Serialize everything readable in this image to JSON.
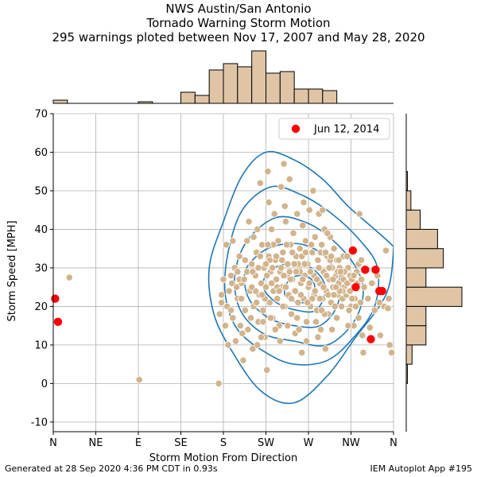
{
  "title": {
    "line1": "NWS Austin/San Antonio",
    "line2": "Tornado Warning Storm Motion",
    "line3": "295 warnings ploted between Nov 17, 2007 and May 28, 2020"
  },
  "footer": {
    "left": "Generated at 28 Sep 2020 4:36 PM CDT in 0.93s",
    "right": "IEM Autoplot App #195"
  },
  "colors": {
    "scatter": "#d2b48c",
    "highlight": "#ff0000",
    "contour": "#1f77b4",
    "hist_fill": "#dfc5a6",
    "grid": "#b0b0b0"
  },
  "chart_data": {
    "type": "scatter",
    "xlabel": "Storm Motion From Direction",
    "ylabel": "Storm Speed [MPH]",
    "xlim": [
      0,
      360
    ],
    "ylim": [
      -12.5,
      70
    ],
    "grid": true,
    "legend": {
      "position": "top-right",
      "label": "Jun 12, 2014"
    },
    "x_ticks": [
      {
        "value": 0,
        "label": "N"
      },
      {
        "value": 45,
        "label": "NE"
      },
      {
        "value": 90,
        "label": "E"
      },
      {
        "value": 135,
        "label": "SE"
      },
      {
        "value": 180,
        "label": "S"
      },
      {
        "value": 225,
        "label": "SW"
      },
      {
        "value": 270,
        "label": "W"
      },
      {
        "value": 315,
        "label": "NW"
      },
      {
        "value": 360,
        "label": "N"
      }
    ],
    "y_ticks": [
      -10,
      0,
      10,
      20,
      30,
      40,
      50,
      60,
      70
    ],
    "highlight_points": [
      [
        2,
        22
      ],
      [
        5,
        16
      ],
      [
        317,
        34.5
      ],
      [
        320,
        25
      ],
      [
        330,
        29.5
      ],
      [
        341,
        29.5
      ],
      [
        345,
        24
      ],
      [
        348,
        24
      ],
      [
        336,
        11.5
      ]
    ],
    "points": [
      [
        17,
        27.5
      ],
      [
        91,
        1
      ],
      [
        175,
        0
      ],
      [
        176,
        18
      ],
      [
        178,
        21
      ],
      [
        180,
        27
      ],
      [
        182,
        15
      ],
      [
        184,
        20
      ],
      [
        186,
        24
      ],
      [
        188,
        28
      ],
      [
        190,
        17
      ],
      [
        192,
        30
      ],
      [
        193,
        11
      ],
      [
        195,
        22
      ],
      [
        197,
        33
      ],
      [
        199,
        26
      ],
      [
        201,
        6
      ],
      [
        203,
        19
      ],
      [
        205,
        37
      ],
      [
        206,
        14
      ],
      [
        208,
        24
      ],
      [
        210,
        31
      ],
      [
        211,
        9
      ],
      [
        212,
        20
      ],
      [
        214,
        28
      ],
      [
        215,
        34
      ],
      [
        216,
        40
      ],
      [
        217,
        16
      ],
      [
        218,
        23
      ],
      [
        219,
        52
      ],
      [
        220,
        26
      ],
      [
        221,
        36
      ],
      [
        222,
        19
      ],
      [
        223,
        30
      ],
      [
        224,
        12
      ],
      [
        225,
        25
      ],
      [
        226,
        3.5
      ],
      [
        227,
        55
      ],
      [
        228,
        33
      ],
      [
        229,
        21
      ],
      [
        230,
        29
      ],
      [
        231,
        40
      ],
      [
        232,
        17
      ],
      [
        233,
        24
      ],
      [
        234,
        44
      ],
      [
        235,
        32
      ],
      [
        236,
        27
      ],
      [
        237,
        22
      ],
      [
        238,
        37
      ],
      [
        239,
        15
      ],
      [
        240,
        29
      ],
      [
        241,
        51
      ],
      [
        242,
        25
      ],
      [
        243,
        34
      ],
      [
        244,
        57
      ],
      [
        245,
        20
      ],
      [
        246,
        42
      ],
      [
        247,
        28
      ],
      [
        248,
        31
      ],
      [
        249,
        23
      ],
      [
        250,
        53
      ],
      [
        251,
        36
      ],
      [
        252,
        18
      ],
      [
        253,
        27
      ],
      [
        254,
        39
      ],
      [
        255,
        24
      ],
      [
        256,
        13
      ],
      [
        257,
        33
      ],
      [
        258,
        44
      ],
      [
        259,
        21
      ],
      [
        260,
        30
      ],
      [
        261,
        35
      ],
      [
        262,
        26
      ],
      [
        263,
        8
      ],
      [
        264,
        41
      ],
      [
        265,
        22
      ],
      [
        266,
        28
      ],
      [
        267,
        37
      ],
      [
        268,
        16
      ],
      [
        269,
        31
      ],
      [
        270,
        25
      ],
      [
        271,
        45
      ],
      [
        272,
        20
      ],
      [
        273,
        29
      ],
      [
        274,
        34
      ],
      [
        275,
        50
      ],
      [
        276,
        23
      ],
      [
        277,
        38
      ],
      [
        278,
        27
      ],
      [
        279,
        19
      ],
      [
        280,
        32
      ],
      [
        281,
        44
      ],
      [
        282,
        26
      ],
      [
        283,
        14
      ],
      [
        284,
        36
      ],
      [
        285,
        22
      ],
      [
        286,
        29
      ],
      [
        287,
        40
      ],
      [
        288,
        9
      ],
      [
        289,
        24
      ],
      [
        290,
        33
      ],
      [
        291,
        18
      ],
      [
        292,
        27
      ],
      [
        293,
        38
      ],
      [
        294,
        21
      ],
      [
        295,
        30
      ],
      [
        296,
        25
      ],
      [
        297,
        35
      ],
      [
        298,
        20
      ],
      [
        299,
        28
      ],
      [
        300,
        32
      ],
      [
        301,
        23
      ],
      [
        302,
        26
      ],
      [
        303,
        30
      ],
      [
        304,
        24
      ],
      [
        305,
        28
      ],
      [
        306,
        22
      ],
      [
        307,
        27
      ],
      [
        308,
        25
      ],
      [
        309,
        29
      ],
      [
        310,
        23
      ],
      [
        311,
        26
      ],
      [
        312,
        30
      ],
      [
        313,
        24
      ],
      [
        314,
        28
      ],
      [
        315,
        20
      ],
      [
        316,
        27
      ],
      [
        318,
        15
      ],
      [
        319,
        22
      ],
      [
        321,
        29
      ],
      [
        322,
        26
      ],
      [
        323,
        17
      ],
      [
        324,
        44
      ],
      [
        325,
        21
      ],
      [
        326,
        27
      ],
      [
        327,
        12.5
      ],
      [
        328,
        8
      ],
      [
        329,
        25
      ],
      [
        333,
        22
      ],
      [
        335,
        14.5
      ],
      [
        338,
        26
      ],
      [
        340,
        19
      ],
      [
        343,
        28
      ],
      [
        346,
        12.5
      ],
      [
        350,
        20
      ],
      [
        352,
        34.5
      ],
      [
        354,
        19.5
      ],
      [
        355,
        22
      ],
      [
        356,
        10
      ],
      [
        358,
        8
      ],
      [
        197,
        27
      ],
      [
        203,
        32
      ],
      [
        212,
        38
      ],
      [
        219,
        33
      ],
      [
        224,
        22
      ],
      [
        226,
        28
      ],
      [
        231,
        26
      ],
      [
        236,
        33
      ],
      [
        241,
        30
      ],
      [
        246,
        25
      ],
      [
        251,
        27
      ],
      [
        256,
        24
      ],
      [
        261,
        29
      ],
      [
        266,
        31
      ],
      [
        271,
        26
      ],
      [
        276,
        28
      ],
      [
        281,
        30
      ],
      [
        286,
        25
      ],
      [
        291,
        23
      ],
      [
        296,
        27
      ],
      [
        301,
        29
      ],
      [
        306,
        24
      ],
      [
        214,
        24
      ],
      [
        229,
        32
      ],
      [
        244,
        28
      ],
      [
        259,
        31
      ],
      [
        274,
        22
      ],
      [
        289,
        28
      ],
      [
        200,
        13
      ],
      [
        210,
        25
      ],
      [
        220,
        12
      ],
      [
        240,
        11
      ],
      [
        260,
        14
      ],
      [
        280,
        12
      ],
      [
        300,
        17
      ],
      [
        312,
        15
      ],
      [
        183,
        36
      ],
      [
        190,
        37
      ],
      [
        207,
        42
      ],
      [
        228,
        47
      ],
      [
        245,
        46
      ],
      [
        265,
        47
      ],
      [
        285,
        45
      ],
      [
        290,
        39
      ],
      [
        195,
        29
      ],
      [
        205,
        29
      ],
      [
        215,
        21
      ],
      [
        233,
        36
      ],
      [
        243,
        20
      ],
      [
        253,
        34
      ],
      [
        263,
        33
      ],
      [
        273,
        36
      ],
      [
        283,
        34
      ],
      [
        293,
        32
      ],
      [
        303,
        24
      ],
      [
        307,
        33
      ],
      [
        185,
        10
      ],
      [
        198,
        15
      ],
      [
        209,
        17
      ],
      [
        216,
        10
      ],
      [
        222,
        16
      ],
      [
        235,
        14
      ],
      [
        248,
        15
      ],
      [
        258,
        17
      ],
      [
        268,
        11
      ],
      [
        278,
        16
      ],
      [
        287,
        18
      ],
      [
        295,
        14
      ],
      [
        305,
        20
      ],
      [
        313,
        19
      ],
      [
        189,
        26
      ],
      [
        199,
        22
      ],
      [
        211,
        29
      ],
      [
        221,
        23
      ],
      [
        227,
        36
      ],
      [
        232,
        30
      ],
      [
        237,
        25
      ],
      [
        242,
        32
      ],
      [
        247,
        36
      ],
      [
        252,
        22
      ],
      [
        257,
        29
      ],
      [
        262,
        23
      ],
      [
        267,
        34
      ],
      [
        272,
        29
      ],
      [
        277,
        24
      ],
      [
        282,
        22
      ],
      [
        288,
        34
      ],
      [
        292,
        30
      ],
      [
        297,
        23
      ],
      [
        302,
        32
      ],
      [
        308,
        29
      ],
      [
        318,
        28
      ],
      [
        323,
        31
      ],
      [
        178,
        23
      ],
      [
        188,
        19
      ],
      [
        194,
        25
      ],
      [
        202,
        27
      ],
      [
        217,
        30
      ],
      [
        225,
        31
      ],
      [
        230,
        17
      ],
      [
        239,
        24
      ],
      [
        250,
        29
      ],
      [
        255,
        31
      ],
      [
        264,
        27
      ],
      [
        269,
        21
      ],
      [
        279,
        27
      ],
      [
        284,
        19
      ],
      [
        294,
        33
      ],
      [
        299,
        25
      ],
      [
        304,
        29
      ],
      [
        311,
        33
      ],
      [
        314,
        24
      ],
      [
        316,
        22
      ],
      [
        320,
        20
      ],
      [
        345,
        21
      ],
      [
        337,
        26
      ],
      [
        326,
        32
      ]
    ],
    "contours": [
      [
        [
          225,
          60
        ],
        [
          255,
          58
        ],
        [
          285,
          53
        ],
        [
          312,
          46
        ],
        [
          340,
          40
        ],
        [
          358,
          36
        ],
        [
          360,
          35
        ],
        [
          356,
          26
        ],
        [
          345,
          20
        ],
        [
          320,
          12
        ],
        [
          290,
          2
        ],
        [
          255,
          -5
        ],
        [
          220,
          -2
        ],
        [
          190,
          8
        ],
        [
          170,
          18
        ],
        [
          165,
          30
        ],
        [
          180,
          42
        ],
        [
          200,
          54
        ]
      ],
      [
        [
          230,
          51
        ],
        [
          262,
          49
        ],
        [
          295,
          44
        ],
        [
          325,
          37
        ],
        [
          343,
          30
        ],
        [
          340,
          20
        ],
        [
          318,
          12
        ],
        [
          290,
          6
        ],
        [
          255,
          5
        ],
        [
          225,
          8
        ],
        [
          195,
          14
        ],
        [
          182,
          23
        ],
        [
          185,
          34
        ],
        [
          200,
          45
        ]
      ],
      [
        [
          235,
          43
        ],
        [
          265,
          42
        ],
        [
          292,
          38
        ],
        [
          318,
          31
        ],
        [
          328,
          24
        ],
        [
          318,
          16
        ],
        [
          290,
          10
        ],
        [
          255,
          11
        ],
        [
          222,
          13
        ],
        [
          198,
          19
        ],
        [
          192,
          28
        ],
        [
          205,
          37
        ]
      ],
      [
        [
          240,
          36
        ],
        [
          265,
          36
        ],
        [
          287,
          33
        ],
        [
          303,
          27
        ],
        [
          300,
          20
        ],
        [
          282,
          15
        ],
        [
          255,
          15
        ],
        [
          228,
          17
        ],
        [
          207,
          22
        ],
        [
          203,
          29
        ],
        [
          220,
          34
        ]
      ],
      [
        [
          245,
          31
        ],
        [
          265,
          31
        ],
        [
          282,
          28
        ],
        [
          288,
          24
        ],
        [
          278,
          19
        ],
        [
          258,
          19
        ],
        [
          236,
          21
        ],
        [
          222,
          25
        ],
        [
          228,
          29
        ]
      ],
      [
        [
          250,
          27
        ],
        [
          265,
          28
        ],
        [
          276,
          26
        ],
        [
          274,
          22
        ],
        [
          260,
          21
        ],
        [
          245,
          23
        ]
      ]
    ],
    "top_histogram": {
      "bin_edges": [
        0,
        15,
        30,
        45,
        60,
        75,
        90,
        105,
        120,
        135,
        150,
        165,
        180,
        195,
        210,
        225,
        240,
        255,
        270,
        285,
        300,
        315,
        330,
        345,
        360
      ],
      "counts": [
        2,
        0,
        0,
        0,
        0,
        0,
        1,
        0,
        0,
        7,
        5,
        21,
        25,
        23,
        33,
        19,
        20,
        9,
        9,
        8,
        0,
        0,
        0,
        0
      ]
    },
    "right_histogram": {
      "bin_edges": [
        0,
        5,
        10,
        15,
        20,
        25,
        30,
        35,
        40,
        45,
        50,
        55
      ],
      "counts": [
        1,
        5,
        17,
        17,
        48,
        17,
        32,
        27,
        12,
        4,
        1
      ]
    }
  }
}
